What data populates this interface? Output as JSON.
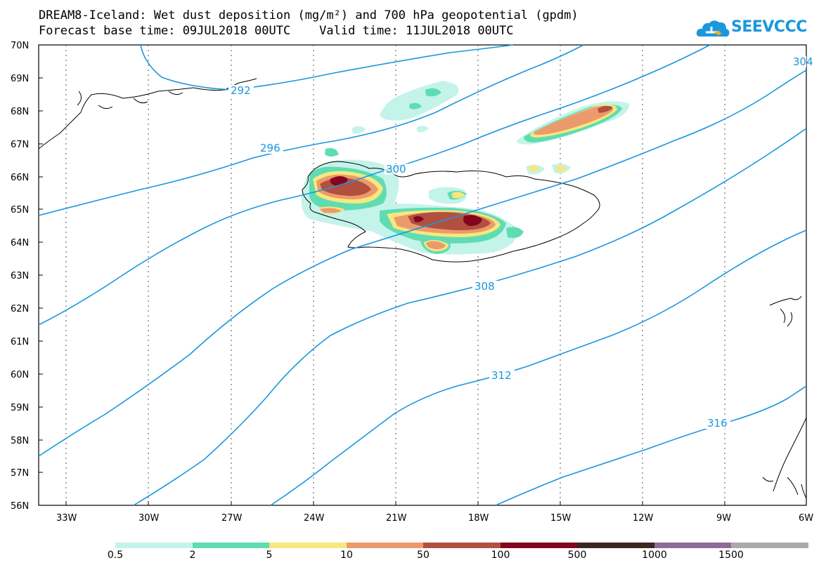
{
  "title": {
    "line1": "DREAM8-Iceland: Wet dust deposition (mg/m²) and 700 hPa geopotential (gpdm)",
    "line2": "Forecast base time: 09JUL2018 00UTC    Valid time: 11JUL2018 00UTC"
  },
  "logo": {
    "text": "SEEVCCC",
    "icon": "cloud-icon"
  },
  "axes": {
    "lat_labels": [
      "70N",
      "69N",
      "68N",
      "67N",
      "66N",
      "65N",
      "64N",
      "63N",
      "62N",
      "61N",
      "60N",
      "59N",
      "58N",
      "57N",
      "56N"
    ],
    "lon_labels": [
      "33W",
      "30W",
      "27W",
      "24W",
      "21W",
      "18W",
      "15W",
      "12W",
      "9W",
      "6W"
    ],
    "lat_range": [
      56,
      70
    ],
    "lon_range": [
      -34.5,
      -6
    ]
  },
  "contour_labels": [
    "292",
    "296",
    "300",
    "304",
    "308",
    "312",
    "316"
  ],
  "colors": {
    "contour": "#1a97dd",
    "bins": [
      "#c4f3ea",
      "#5fdcb2",
      "#f8e77e",
      "#ec9a6c",
      "#b2503f",
      "#83061e",
      "#3b2620",
      "#8e6b99",
      "#aaaaaa"
    ]
  },
  "legend": {
    "labels": [
      "0.5",
      "2",
      "5",
      "10",
      "50",
      "100",
      "500",
      "1000",
      "1500"
    ]
  },
  "chart_data": {
    "type": "heatmap",
    "title": "DREAM8-Iceland: Wet dust deposition (mg/m²) and 700 hPa geopotential (gpdm)",
    "xlabel": "",
    "ylabel": "",
    "units": "mg/m²",
    "thresholds": [
      0.5,
      2,
      5,
      10,
      50,
      100,
      500,
      1000,
      1500
    ],
    "contours": [
      {
        "value": 292,
        "label_position": [
          -25.2,
          68.55
        ]
      },
      {
        "value": 296,
        "label_position": [
          -24.6,
          66.85
        ]
      },
      {
        "value": 300,
        "label_position": [
          -20.6,
          66.25
        ]
      },
      {
        "value": 308,
        "label_position": [
          -17.8,
          62.7
        ]
      },
      {
        "value": 312,
        "label_position": [
          -17.0,
          59.95
        ]
      },
      {
        "value": 316,
        "label_position": [
          -9.5,
          58.5
        ]
      }
    ],
    "deposition_maxima": [
      {
        "lon": -23.1,
        "lat": 65.95,
        "level": "100-500"
      },
      {
        "lon": -18.0,
        "lat": 64.7,
        "level": "100-500"
      },
      {
        "lon": -20.1,
        "lat": 64.75,
        "level": "100-500"
      },
      {
        "lon": -13.4,
        "lat": 68.1,
        "level": "50-100"
      }
    ]
  }
}
